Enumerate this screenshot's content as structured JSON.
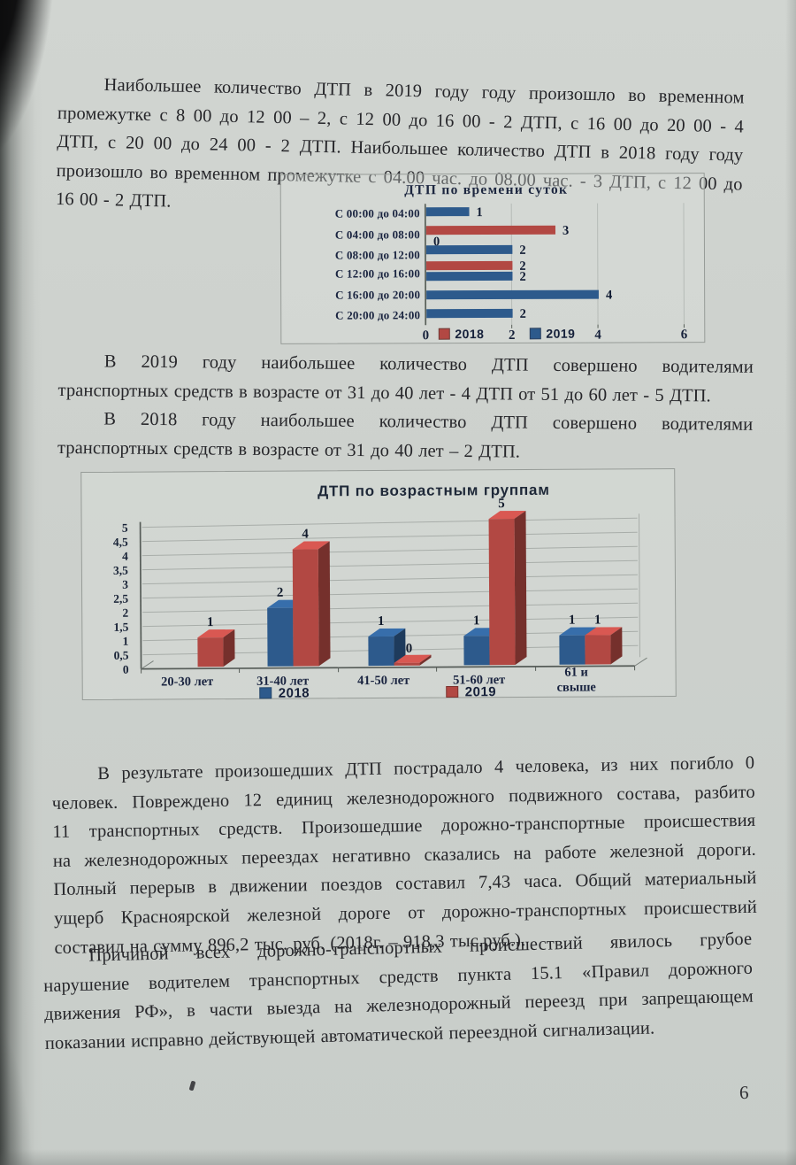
{
  "page": {
    "number": "6"
  },
  "paragraphs": {
    "p1": [
      "Наибольшее количество ДТП в 2019 году году произошло во временном",
      "промежутке  с 8 00 до 12 00 – 2, с 12 00 до 16 00 - 2 ДТП,  с 16 00 до 20 00 - 4",
      "ДТП, с 20 00 до 24 00 - 2 ДТП. Наибольшее количество ДТП в 2018 году году",
      "произошло во временном промежутке с 04.00 час. до 08.00 час. - 3 ДТП, с 12 00 до",
      "16 00 - 2 ДТП."
    ],
    "p2a": [
      "В 2019 году наибольшее количество ДТП совершено водителями",
      "транспортных средств в возрасте от 31 до 40 лет  - 4 ДТП от 51 до 60 лет  - 5 ДТП."
    ],
    "p2b": [
      "В 2018 году наибольшее количество ДТП совершено водителями",
      "транспортных средств в возрасте от 31 до 40 лет – 2 ДТП."
    ],
    "p3": [
      "В результате произошедших ДТП пострадало 4 человека, из них погибло 0",
      "человек. Повреждено 12 единиц железнодорожного подвижного состава, разбито",
      "11 транспортных средств. Произошедшие дорожно-транспортные происшествия",
      "на железнодорожных переездах негативно сказались на работе железной дороги.",
      "Полный перерыв в движении поездов составил 7,43 часа. Общий материальный",
      "ущерб Красноярской железной дороге от дорожно-транспортных происшествий",
      "составил на сумму 896,2 тыс. руб. (2018г. – 918,3  тыс.руб.)."
    ],
    "p4": [
      "Причиной всех дорожно-транспортных происшествий явилось грубое",
      "нарушение водителем транспортных средств пункта 15.1 «Правил дорожного",
      "движения РФ», в части выезда на железнодорожный переезд при запрещающем",
      "показании исправно действующей автоматической переездной сигнализации."
    ]
  },
  "chart_data": [
    {
      "type": "bar",
      "orientation": "horizontal",
      "title": "ДТП по времени суток",
      "categories": [
        "С 00:00 до 04:00",
        "С 04:00 до 08:00",
        "С 08:00 до 12:00",
        "С 12:00 до 16:00",
        "С 16:00 до 20:00",
        "С 20:00 до 24:00"
      ],
      "series": [
        {
          "name": "2018",
          "color": "#b24843",
          "values": [
            0,
            3,
            0,
            2,
            0,
            0
          ]
        },
        {
          "name": "2019",
          "color": "#2d5a8c",
          "values": [
            1,
            0,
            2,
            2,
            4,
            2
          ]
        }
      ],
      "xlim": [
        0,
        6
      ],
      "xticks": [
        0,
        2,
        4,
        6
      ],
      "grid": true,
      "legend_position": "bottom",
      "zero_label": {
        "series": "2019",
        "category_index": 1
      }
    },
    {
      "type": "bar",
      "style": "3d",
      "title": "ДТП по возрастным группам",
      "categories": [
        "20-30 лет",
        "31-40 лет",
        "41-50 лет",
        "51-60 лет",
        "61 и свыше"
      ],
      "series": [
        {
          "name": "2018",
          "color": "#2d5a8c",
          "values": [
            0,
            2,
            1,
            1,
            1
          ]
        },
        {
          "name": "2019",
          "color": "#b24843",
          "values": [
            1,
            4,
            0,
            5,
            1
          ]
        }
      ],
      "ylim": [
        0,
        5
      ],
      "yticks": [
        "5",
        "4,5",
        "4",
        "3,5",
        "3",
        "2,5",
        "2",
        "1,5",
        "1",
        "0,5",
        "0"
      ],
      "grid": true,
      "legend_position": "bottom",
      "zero_label": {
        "series": "2019",
        "category_index": 2
      }
    }
  ]
}
